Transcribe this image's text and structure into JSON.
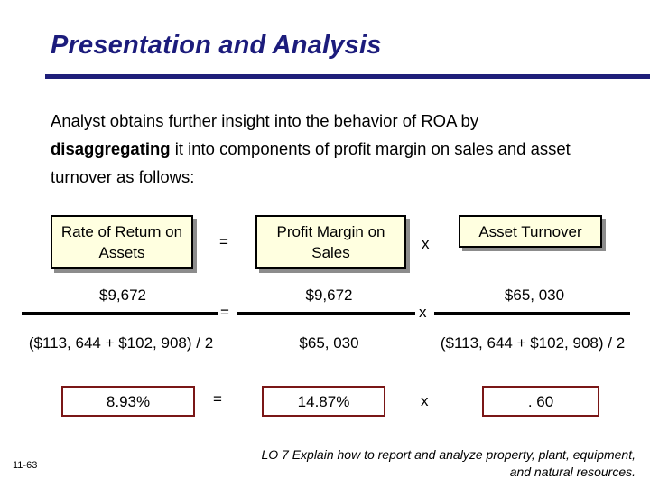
{
  "slide": {
    "title": "Presentation and Analysis",
    "intro": {
      "lead": "Analyst obtains further insight into the behavior of ROA by",
      "bold_word": "disaggregating",
      "rest": " it into components of profit margin on sales and asset turnover as follows:"
    }
  },
  "headers": {
    "roa": "Rate of Return on Assets",
    "equals": "=",
    "profit_margin": "Profit Margin on Sales",
    "times": "x",
    "asset_turnover": "Asset Turnover"
  },
  "numerators": {
    "roa": "$9,672",
    "equals": "=",
    "profit_margin": "$9,672",
    "times": "x",
    "asset_turnover": "$65, 030"
  },
  "denominators": {
    "roa": "($113, 644 + $102, 908) / 2",
    "profit_margin": "$65, 030",
    "asset_turnover": "($113, 644 + $102, 908) / 2"
  },
  "results": {
    "roa": "8.93%",
    "equals": "=",
    "profit_margin": "14.87%",
    "times": "x",
    "asset_turnover": ". 60"
  },
  "footer": {
    "slide_number": "11-63",
    "learning_objective": "LO 7  Explain how to report and analyze property, plant, equipment, and natural resources."
  },
  "colors": {
    "title": "#1c1c7c",
    "header_box_bg": "#ffffe0",
    "result_box_border": "#7a1616"
  }
}
